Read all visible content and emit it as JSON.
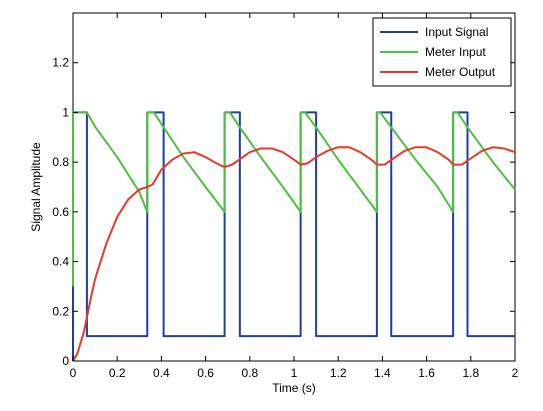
{
  "chart_data": {
    "type": "line",
    "title": "",
    "xlabel": "Time (s)",
    "ylabel": "Signal Amplitude",
    "xlim": [
      0,
      2
    ],
    "ylim": [
      0,
      1.4
    ],
    "xticks": [
      "0",
      "0.2",
      "0.4",
      "0.6",
      "0.8",
      "1",
      "1.2",
      "1.4",
      "1.6",
      "1.8",
      "2"
    ],
    "yticks": [
      "0",
      "0.2",
      "0.4",
      "0.6",
      "0.8",
      "1",
      "1.2"
    ],
    "grid": false,
    "legend_position": "top-right",
    "series": [
      {
        "name": "Input Signal",
        "color": "#1f3f9f",
        "x": [
          0,
          0,
          0.063,
          0.063,
          0.102,
          0.102,
          0.336,
          0.336,
          0.366,
          0.366,
          0.41,
          0.41,
          0.686,
          0.686,
          0.71,
          0.71,
          0.755,
          0.755,
          1.03,
          1.03,
          1.05,
          1.05,
          1.1,
          1.1,
          1.375,
          1.375,
          1.39,
          1.39,
          1.44,
          1.44,
          1.72,
          1.72,
          1.74,
          1.74,
          1.785,
          1.785,
          2.0
        ],
        "y": [
          0,
          1.0,
          1.0,
          0.1,
          0.1,
          0.1,
          0.1,
          1.0,
          1.0,
          1.0,
          1.0,
          0.1,
          0.1,
          1.0,
          1.0,
          1.0,
          1.0,
          0.1,
          0.1,
          1.0,
          1.0,
          1.0,
          1.0,
          0.1,
          0.1,
          1.0,
          1.0,
          1.0,
          1.0,
          0.1,
          0.1,
          1.0,
          1.0,
          1.0,
          1.0,
          0.1,
          0.1
        ]
      },
      {
        "name": "Meter Input",
        "color": "#4fbf3f",
        "x": [
          0,
          0,
          0.063,
          0.102,
          0.2,
          0.3,
          0.336,
          0.336,
          0.366,
          0.41,
          0.5,
          0.6,
          0.686,
          0.686,
          0.71,
          0.755,
          0.85,
          0.95,
          1.03,
          1.03,
          1.05,
          1.1,
          1.2,
          1.3,
          1.375,
          1.375,
          1.39,
          1.44,
          1.55,
          1.65,
          1.72,
          1.72,
          1.74,
          1.785,
          1.9,
          2.0
        ],
        "y": [
          0.3,
          1.0,
          1.0,
          0.94,
          0.82,
          0.68,
          0.6,
          1.0,
          1.0,
          0.94,
          0.82,
          0.7,
          0.6,
          1.0,
          1.0,
          0.94,
          0.82,
          0.7,
          0.6,
          1.0,
          1.0,
          0.94,
          0.81,
          0.69,
          0.6,
          1.0,
          1.0,
          0.94,
          0.81,
          0.7,
          0.6,
          1.0,
          1.0,
          0.94,
          0.8,
          0.69
        ]
      },
      {
        "name": "Meter Output",
        "color": "#e53a2a",
        "x": [
          0,
          0.02,
          0.05,
          0.08,
          0.1,
          0.15,
          0.2,
          0.25,
          0.3,
          0.336,
          0.36,
          0.4,
          0.45,
          0.5,
          0.55,
          0.6,
          0.65,
          0.686,
          0.72,
          0.76,
          0.8,
          0.85,
          0.9,
          0.95,
          1.0,
          1.03,
          1.06,
          1.1,
          1.15,
          1.2,
          1.25,
          1.3,
          1.35,
          1.375,
          1.41,
          1.45,
          1.5,
          1.55,
          1.6,
          1.65,
          1.7,
          1.72,
          1.76,
          1.8,
          1.85,
          1.9,
          1.95,
          2.0
        ],
        "y": [
          0,
          0.03,
          0.12,
          0.25,
          0.33,
          0.47,
          0.58,
          0.65,
          0.69,
          0.7,
          0.71,
          0.77,
          0.81,
          0.835,
          0.84,
          0.82,
          0.795,
          0.78,
          0.79,
          0.815,
          0.84,
          0.855,
          0.855,
          0.84,
          0.81,
          0.79,
          0.795,
          0.82,
          0.845,
          0.86,
          0.86,
          0.84,
          0.81,
          0.79,
          0.79,
          0.815,
          0.845,
          0.86,
          0.86,
          0.84,
          0.81,
          0.79,
          0.79,
          0.815,
          0.845,
          0.86,
          0.855,
          0.84
        ]
      }
    ]
  }
}
